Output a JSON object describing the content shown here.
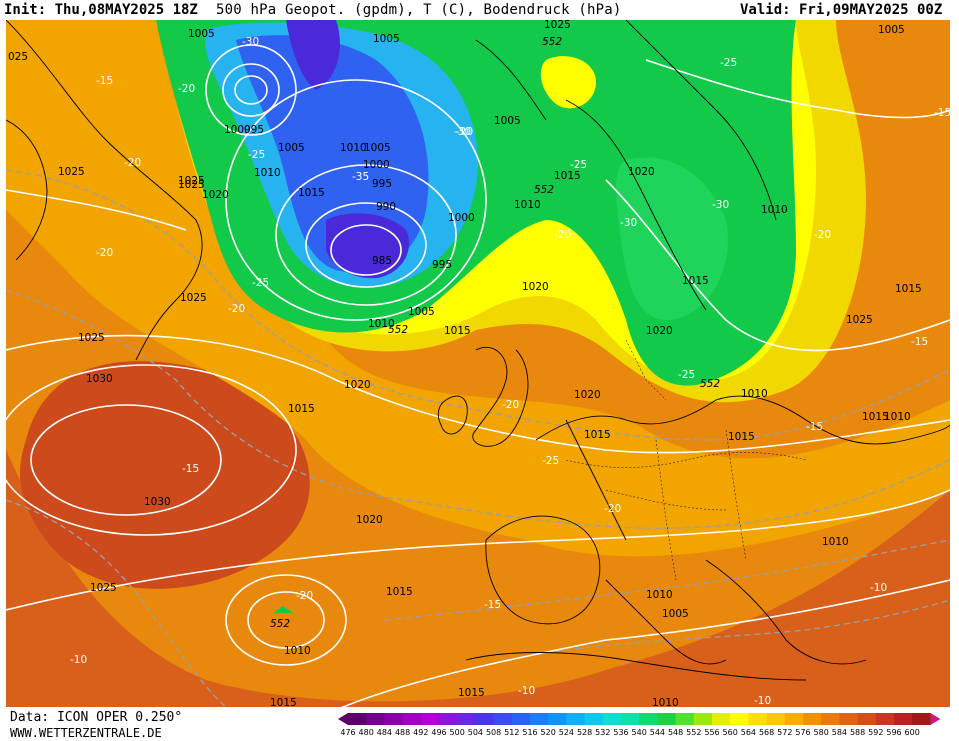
{
  "header": {
    "init": "Init: Thu,08MAY2025 18Z",
    "title": "500 hPa Geopot. (gpdm), T (C), Bodendruck (hPa)",
    "valid": "Valid: Fri,09MAY2025 00Z"
  },
  "footer": {
    "source": "Data: ICON OPER 0.250°",
    "website": "WWW.WETTERZENTRALE.DE"
  },
  "colors": {
    "low_core": "#4a2ad8",
    "low_mid": "#2f62f0",
    "low_outer": "#26b3ef",
    "trough": "#12c94a",
    "trough_light": "#3fe03a",
    "ridge_yellow": "#ffff00",
    "mid_yellow": "#f0e000",
    "orange": "#f2a400",
    "dark_orange": "#e47a10",
    "red_orange": "#d85a1a",
    "isobar": "#ffffff",
    "isotherm": "#9aa0a8"
  },
  "scale": {
    "values": [
      "476",
      "480",
      "484",
      "488",
      "492",
      "496",
      "500",
      "504",
      "508",
      "512",
      "516",
      "520",
      "524",
      "528",
      "532",
      "536",
      "540",
      "544",
      "548",
      "552",
      "556",
      "560",
      "564",
      "568",
      "572",
      "576",
      "580",
      "584",
      "588",
      "592",
      "596",
      "600"
    ],
    "colors": [
      "#5a0068",
      "#72008a",
      "#8a00a6",
      "#a000c0",
      "#b400d6",
      "#8a18dc",
      "#6a28e4",
      "#4a36ea",
      "#3a4cf0",
      "#2a62f2",
      "#1e7cf4",
      "#1294f4",
      "#10aef2",
      "#10c8ee",
      "#10dcd0",
      "#10e0a8",
      "#12d870",
      "#20d040",
      "#52e030",
      "#9ae810",
      "#e0f000",
      "#ffff00",
      "#ffe000",
      "#ffc800",
      "#f8ac00",
      "#f09200",
      "#e87a10",
      "#e06418",
      "#d44e1a",
      "#c83820",
      "#b82220",
      "#a01818"
    ]
  },
  "map_labels": {
    "isobars": [
      "1005",
      "1025",
      "1005",
      "552",
      "1005",
      "025",
      "1030",
      "1000",
      "995",
      "1005",
      "1010",
      "1005",
      "1025",
      "1010",
      "1000",
      "1015",
      "995",
      "990",
      "1000",
      "1015",
      "1020",
      "1010",
      "1015",
      "1020",
      "1010",
      "1015",
      "1025",
      "1010",
      "1005",
      "1015",
      "1020",
      "1020",
      "1020",
      "1025",
      "1020",
      "1015",
      "1015",
      "1010",
      "1030",
      "1020",
      "1030",
      "1025",
      "1015",
      "1010",
      "1010",
      "1005",
      "1015",
      "1010",
      "1010",
      "1015",
      "1025",
      "1015",
      "1010",
      "1015",
      "1015",
      "1010",
      "1005",
      "985",
      "995",
      "1025"
    ],
    "isotherms": [
      "-30",
      "-15",
      "-20",
      "-25",
      "-20",
      "-20",
      "-25",
      "-35",
      "-30",
      "-25",
      "-20",
      "-20",
      "-25",
      "-30",
      "-20",
      "-30",
      "-25",
      "-20",
      "-15",
      "-15",
      "-20",
      "-25",
      "-20",
      "-15",
      "-15",
      "-20",
      "-15",
      "-10",
      "-10",
      "-10",
      "-10"
    ],
    "heights": [
      "552",
      "552",
      "552",
      "552",
      "552"
    ]
  }
}
